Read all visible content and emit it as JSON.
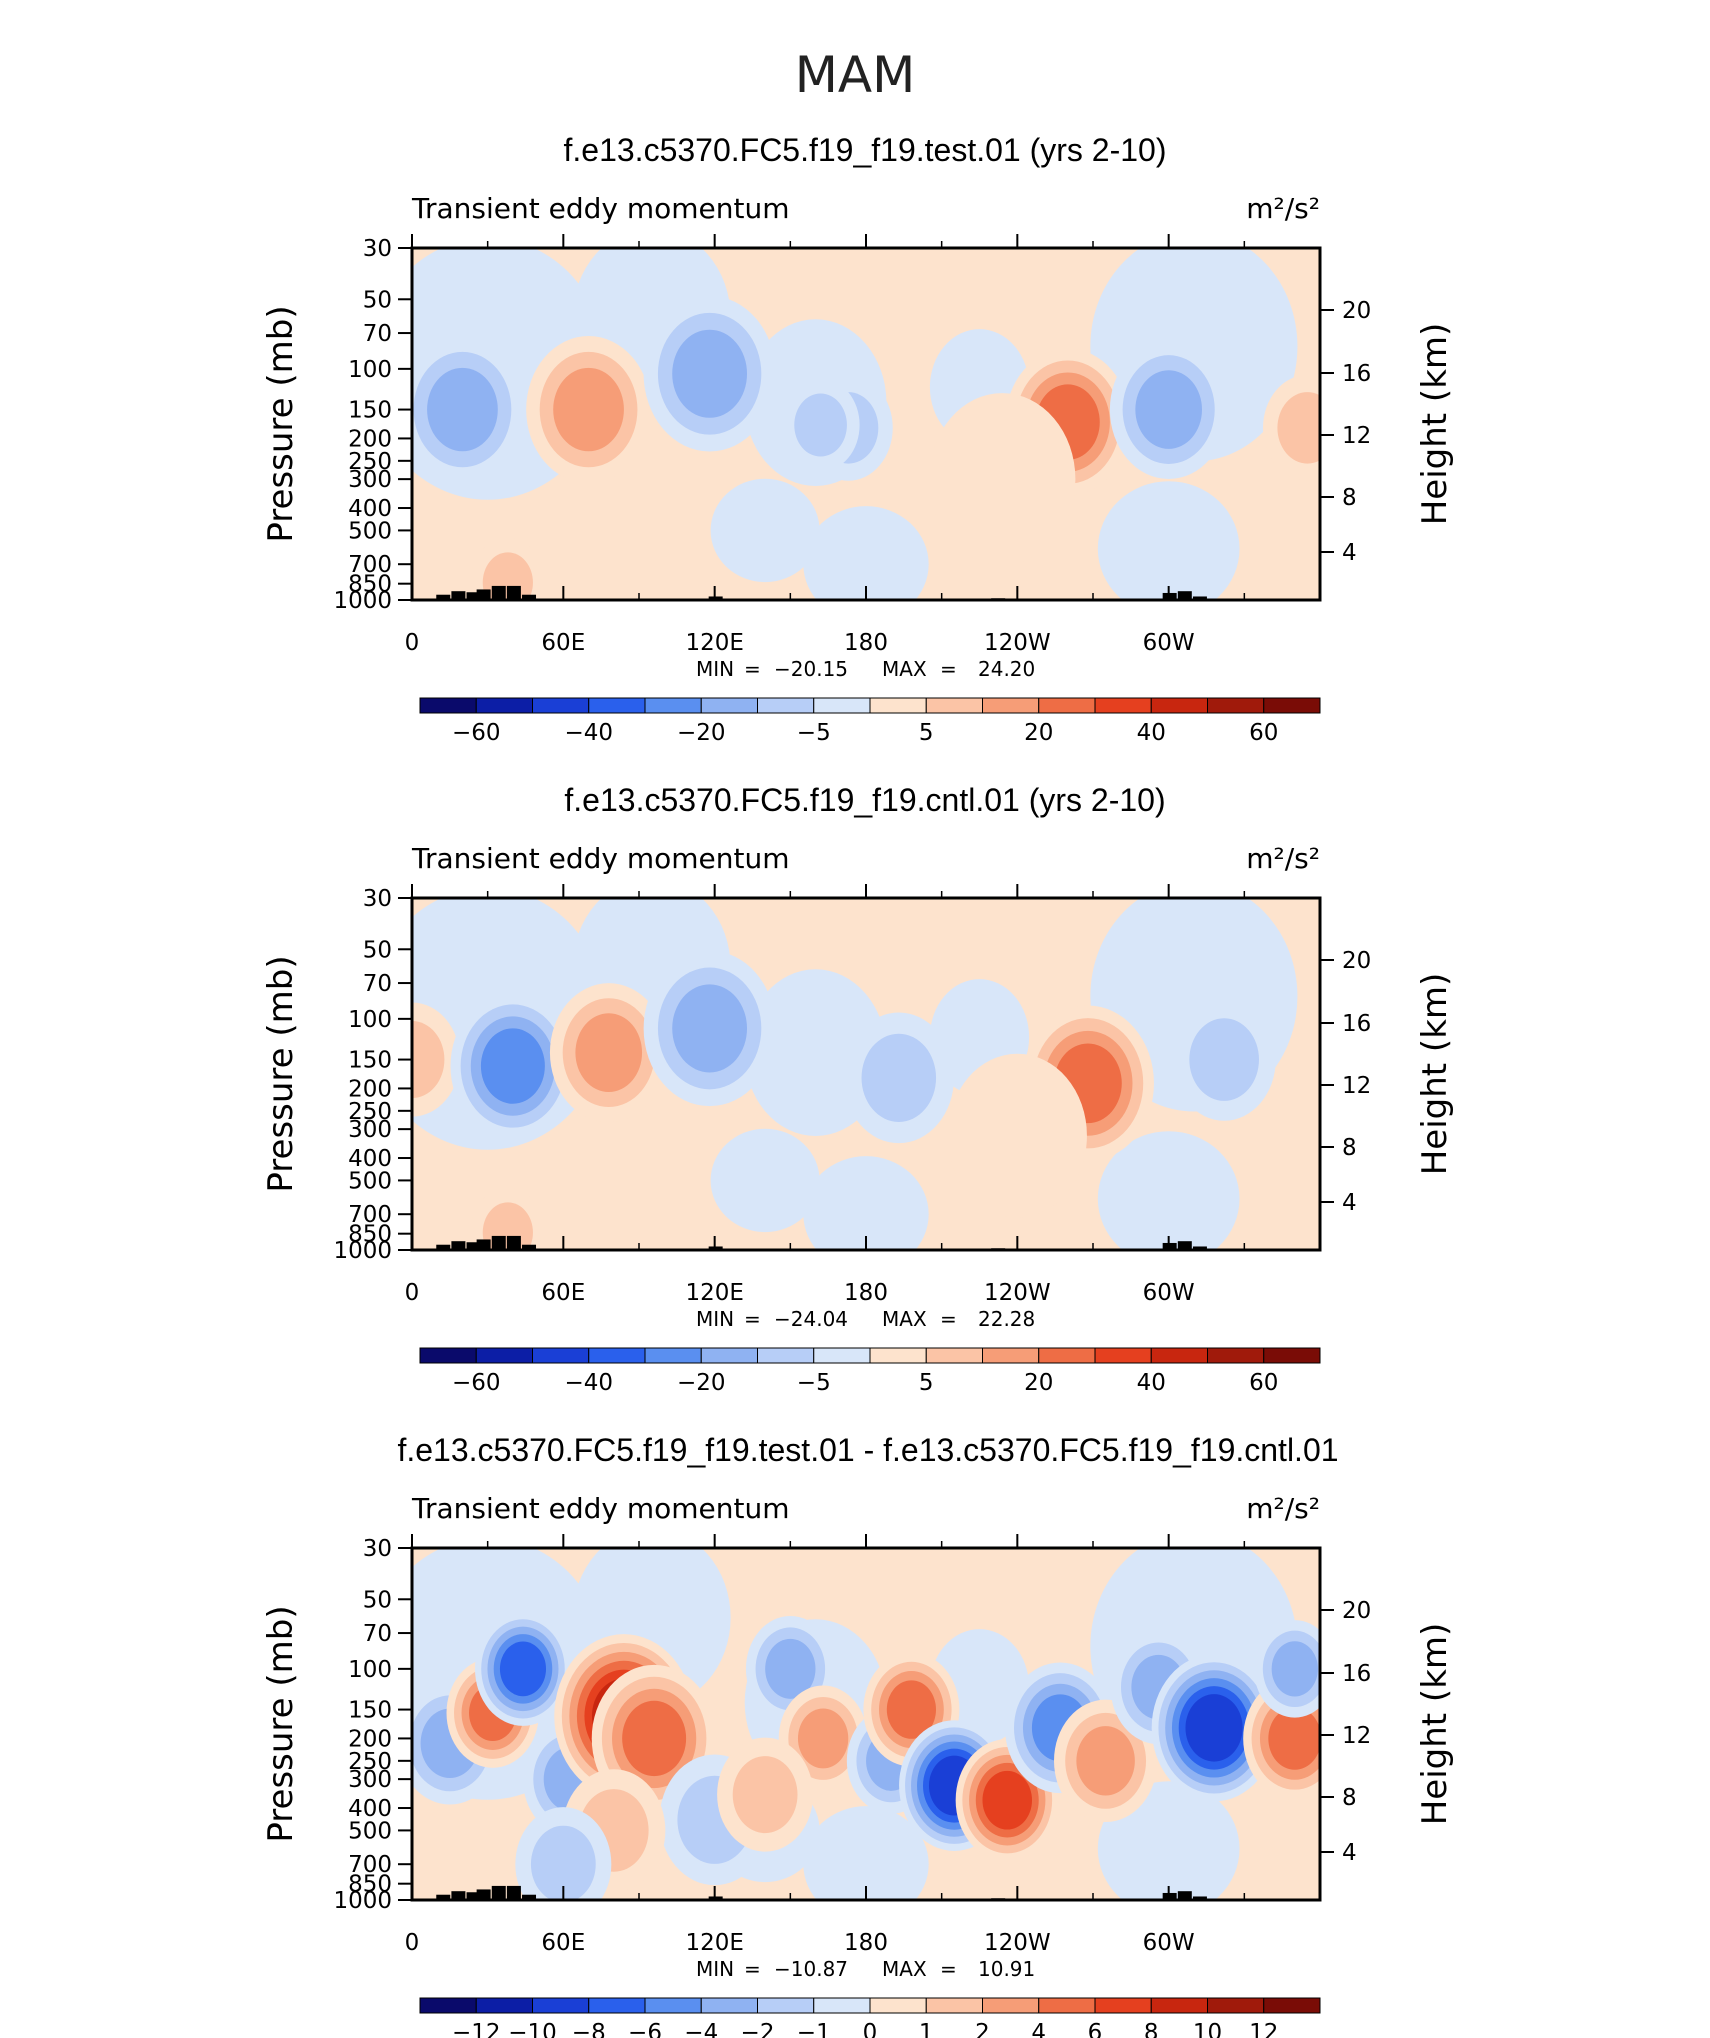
{
  "figure_title": "MAM",
  "chart_data": [
    {
      "type": "heatmap",
      "title": "f.e13.c5370.FC5.f19_f19.test.01 (yrs 2-10)",
      "left_label": "Transient eddy momentum",
      "units": "m²/s²",
      "ylabel": "Pressure (mb)",
      "ylabel2": "Height (km)",
      "x_ticks": [
        "0",
        "60E",
        "120E",
        "180",
        "120W",
        "60W"
      ],
      "y_ticks": [
        "30",
        "50",
        "70",
        "100",
        "150",
        "200",
        "250",
        "300",
        "400",
        "500",
        "700",
        "850",
        "1000"
      ],
      "height_ticks": [
        "20",
        "16",
        "12",
        "8",
        "4"
      ],
      "stats": {
        "min_label": "MIN",
        "min": "−20.15",
        "max_label": "MAX",
        "max": "24.20"
      },
      "colorbar_labels": [
        "−60",
        "−40",
        "−20",
        "−5",
        "5",
        "20",
        "40",
        "60"
      ],
      "blobs": [
        {
          "lon": 20,
          "p": 150,
          "level": -3,
          "size": 1.0
        },
        {
          "lon": 70,
          "p": 150,
          "level": 3,
          "size": 1.0
        },
        {
          "lon": 118,
          "p": 105,
          "level": -3,
          "size": 1.1
        },
        {
          "lon": 260,
          "p": 170,
          "level": 4,
          "size": 1.0
        },
        {
          "lon": 300,
          "p": 150,
          "level": -3,
          "size": 0.9
        },
        {
          "lon": 173,
          "p": 180,
          "level": -2,
          "size": 0.5
        },
        {
          "lon": 162,
          "p": 175,
          "level": -2,
          "size": 0.35
        },
        {
          "lon": 355,
          "p": 180,
          "level": 2,
          "size": 0.5
        },
        {
          "lon": 38,
          "p": 840,
          "level": 2,
          "size": 0.3
        },
        {
          "lon": 234,
          "p": 300,
          "level": 1,
          "size": 1.3
        }
      ]
    },
    {
      "type": "heatmap",
      "title": "f.e13.c5370.FC5.f19_f19.cntl.01 (yrs 2-10)",
      "left_label": "Transient eddy momentum",
      "units": "m²/s²",
      "ylabel": "Pressure (mb)",
      "ylabel2": "Height (km)",
      "x_ticks": [
        "0",
        "60E",
        "120E",
        "180",
        "120W",
        "60W"
      ],
      "y_ticks": [
        "30",
        "50",
        "70",
        "100",
        "150",
        "200",
        "250",
        "300",
        "400",
        "500",
        "700",
        "850",
        "1000"
      ],
      "height_ticks": [
        "20",
        "16",
        "12",
        "8",
        "4"
      ],
      "stats": {
        "min_label": "MIN",
        "min": "−24.04",
        "max_label": "MAX",
        "max": "22.28"
      },
      "colorbar_labels": [
        "−60",
        "−40",
        "−20",
        "−5",
        "5",
        "20",
        "40",
        "60"
      ],
      "blobs": [
        {
          "lon": 0,
          "p": 150,
          "level": 2,
          "size": 0.6
        },
        {
          "lon": 40,
          "p": 160,
          "level": -4,
          "size": 1.0
        },
        {
          "lon": 78,
          "p": 140,
          "level": 3,
          "size": 0.9
        },
        {
          "lon": 118,
          "p": 110,
          "level": -3,
          "size": 1.1
        },
        {
          "lon": 193,
          "p": 180,
          "level": -2,
          "size": 0.8
        },
        {
          "lon": 268,
          "p": 190,
          "level": 4,
          "size": 1.1
        },
        {
          "lon": 322,
          "p": 150,
          "level": -2,
          "size": 0.7
        },
        {
          "lon": 38,
          "p": 840,
          "level": 2,
          "size": 0.3
        },
        {
          "lon": 240,
          "p": 320,
          "level": 1,
          "size": 1.2
        }
      ]
    },
    {
      "type": "heatmap",
      "title": "f.e13.c5370.FC5.f19_f19.test.01 - f.e13.c5370.FC5.f19_f19.cntl.01",
      "left_label": "Transient eddy momentum",
      "units": "m²/s²",
      "ylabel": "Pressure (mb)",
      "ylabel2": "Height (km)",
      "x_ticks": [
        "0",
        "60E",
        "120E",
        "180",
        "120W",
        "60W"
      ],
      "y_ticks": [
        "30",
        "50",
        "70",
        "100",
        "150",
        "200",
        "250",
        "300",
        "400",
        "500",
        "700",
        "850",
        "1000"
      ],
      "height_ticks": [
        "20",
        "16",
        "12",
        "8",
        "4"
      ],
      "stats": {
        "min_label": "MIN",
        "min": "−10.87",
        "max_label": "MAX",
        "max": "10.91"
      },
      "colorbar_labels": [
        "−12",
        "−10",
        "−8",
        "−6",
        "−4",
        "−2",
        "−1",
        "0",
        "1",
        "2",
        "4",
        "6",
        "8",
        "10",
        "12"
      ],
      "blobs": [
        {
          "lon": 15,
          "p": 210,
          "level": -3,
          "size": 0.7
        },
        {
          "lon": 32,
          "p": 155,
          "level": 4,
          "size": 0.55
        },
        {
          "lon": 44,
          "p": 100,
          "level": -5,
          "size": 0.6
        },
        {
          "lon": 63,
          "p": 300,
          "level": -3,
          "size": 0.6
        },
        {
          "lon": 84,
          "p": 160,
          "level": 6,
          "size": 1.2
        },
        {
          "lon": 96,
          "p": 200,
          "level": 4,
          "size": 1.0
        },
        {
          "lon": 150,
          "p": 100,
          "level": -3,
          "size": 0.5
        },
        {
          "lon": 163,
          "p": 200,
          "level": 3,
          "size": 0.5
        },
        {
          "lon": 190,
          "p": 250,
          "level": -3,
          "size": 0.5
        },
        {
          "lon": 198,
          "p": 150,
          "level": 4,
          "size": 0.6
        },
        {
          "lon": 215,
          "p": 320,
          "level": -6,
          "size": 0.8
        },
        {
          "lon": 236,
          "p": 370,
          "level": 5,
          "size": 0.7
        },
        {
          "lon": 257,
          "p": 180,
          "level": -4,
          "size": 0.8
        },
        {
          "lon": 275,
          "p": 250,
          "level": 3,
          "size": 0.7
        },
        {
          "lon": 296,
          "p": 120,
          "level": -3,
          "size": 0.6
        },
        {
          "lon": 318,
          "p": 180,
          "level": -6,
          "size": 1.0
        },
        {
          "lon": 350,
          "p": 200,
          "level": 4,
          "size": 0.7
        },
        {
          "lon": 350,
          "p": 100,
          "level": -3,
          "size": 0.4
        },
        {
          "lon": 120,
          "p": 450,
          "level": -2,
          "size": 0.8
        },
        {
          "lon": 140,
          "p": 350,
          "level": 2,
          "size": 0.6
        },
        {
          "lon": 80,
          "p": 500,
          "level": 2,
          "size": 0.7
        },
        {
          "lon": 60,
          "p": 700,
          "level": -2,
          "size": 0.6
        }
      ]
    }
  ],
  "palette": [
    "#0a0a6b",
    "#0c1ea6",
    "#1a3fd6",
    "#2a60ec",
    "#5a8ff0",
    "#8fb2f2",
    "#b7cef7",
    "#d8e6f9",
    "#fde3cd",
    "#fbc4a6",
    "#f69d77",
    "#ee6d45",
    "#e5401f",
    "#c8260f",
    "#a01a0b",
    "#7a0c06"
  ]
}
